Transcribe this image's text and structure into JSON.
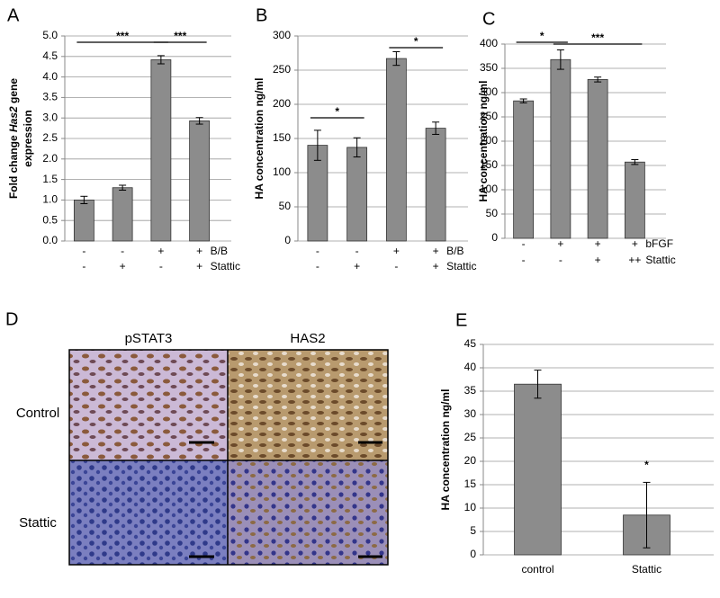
{
  "chart_data": [
    {
      "type": "bar",
      "panel_label": "A",
      "ylabel": [
        [
          "Fold change",
          "Has2",
          "gene"
        ],
        [
          "expression"
        ]
      ],
      "ylim": [
        0,
        5
      ],
      "yticks": [
        {
          "value": 0,
          "label": "0.0"
        },
        0.5,
        {
          "value": 1,
          "label": "1.0"
        },
        1.5,
        {
          "value": 2,
          "label": "2.0"
        },
        2.5,
        {
          "value": 3,
          "label": "3.0"
        },
        3.5,
        {
          "value": 4,
          "label": "4.0"
        },
        4.5,
        {
          "value": 5,
          "label": "5.0"
        }
      ],
      "values": [
        1.0,
        1.3,
        4.42,
        2.93
      ],
      "errors": [
        0.09,
        0.06,
        0.1,
        0.08
      ],
      "color": "#8c8c8c",
      "grid": true,
      "conditions": [
        {
          "name": "B/B",
          "signs": [
            "-",
            "-",
            "+",
            "+"
          ]
        },
        {
          "name": "Stattic",
          "signs": [
            "-",
            "+",
            "-",
            "+"
          ]
        }
      ],
      "significance": [
        "***",
        "***"
      ]
    },
    {
      "type": "bar",
      "panel_label": "B",
      "ylabel": [
        [
          "HA concentration ng/ml"
        ]
      ],
      "ylim": [
        0,
        300
      ],
      "yticks": [
        0,
        50,
        100,
        150,
        200,
        250,
        300
      ],
      "values": [
        140,
        137,
        267,
        165
      ],
      "errors": [
        22,
        14,
        10,
        9
      ],
      "color": "#8c8c8c",
      "grid": true,
      "conditions": [
        {
          "name": "B/B",
          "signs": [
            "-",
            "-",
            "+",
            "+"
          ]
        },
        {
          "name": "Stattic",
          "signs": [
            "-",
            "+",
            "-",
            "+"
          ]
        }
      ],
      "significance": [
        "*",
        "*"
      ]
    },
    {
      "type": "bar",
      "panel_label": "C",
      "ylabel": [
        [
          "HA concentration ng/ml"
        ]
      ],
      "ylim": [
        0,
        400
      ],
      "yticks": [
        0,
        50,
        100,
        150,
        200,
        250,
        300,
        350,
        400
      ],
      "values": [
        283,
        368,
        327,
        157
      ],
      "errors": [
        4,
        20,
        5,
        5
      ],
      "color": "#8c8c8c",
      "grid": true,
      "conditions": [
        {
          "name": "bFGF",
          "signs": [
            "-",
            "+",
            "+",
            "+"
          ]
        },
        {
          "name": "Stattic",
          "signs": [
            "-",
            "-",
            "+",
            "++"
          ]
        }
      ],
      "significance": [
        "*",
        "***"
      ]
    },
    {
      "type": "bar",
      "panel_label": "E",
      "ylabel": [
        [
          "HA concentration ng/ml"
        ]
      ],
      "ylim": [
        0,
        45
      ],
      "yticks": [
        0,
        5,
        10,
        15,
        20,
        25,
        30,
        35,
        40,
        45
      ],
      "categories": [
        "control",
        "Stattic"
      ],
      "values": [
        36.5,
        8.5
      ],
      "errors": [
        3,
        7
      ],
      "color": "#8c8c8c",
      "grid": true,
      "significance": [
        "*"
      ]
    }
  ],
  "image_panel": {
    "panel_label": "D",
    "columns": [
      "pSTAT3",
      "HAS2"
    ],
    "rows": [
      "Control",
      "Stattic"
    ]
  }
}
